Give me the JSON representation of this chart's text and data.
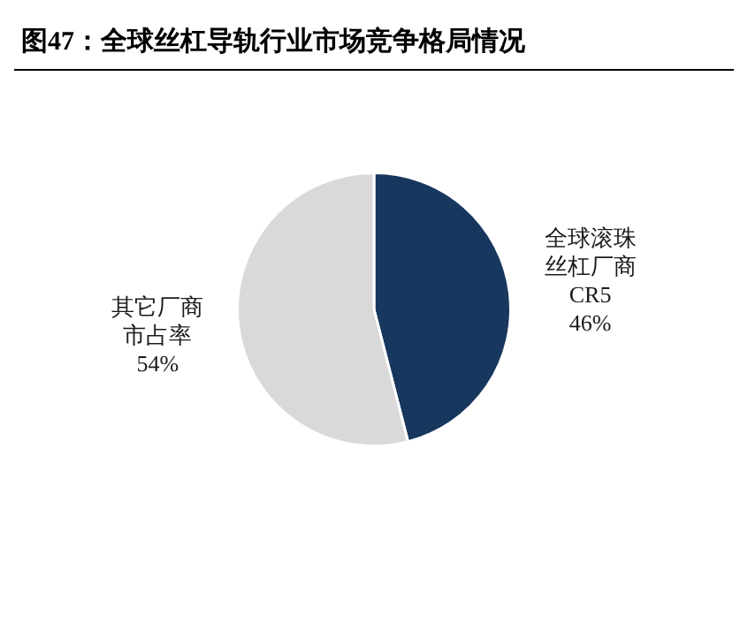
{
  "chart_data": {
    "type": "pie",
    "title": "图47：全球丝杠导轨行业市场竞争格局情况",
    "categories": [
      "全球滚珠丝杠厂商CR5",
      "其它厂商市占率"
    ],
    "values": [
      46,
      54
    ],
    "colors": [
      "#17375e",
      "#d9d9d9"
    ],
    "value_labels": [
      "46%",
      "54%"
    ],
    "legend": false
  }
}
